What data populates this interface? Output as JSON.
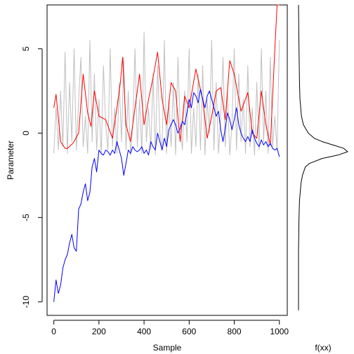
{
  "chart_data": [
    {
      "type": "line",
      "title": "",
      "xlabel": "Sample",
      "ylabel": "Parameter",
      "xlim": [
        -30,
        1035
      ],
      "ylim": [
        -10.8,
        7.6
      ],
      "xticks": [
        "0",
        "200",
        "400",
        "600",
        "800",
        "1000"
      ],
      "yticks": [
        "-10",
        "-5",
        "0",
        "5"
      ],
      "grid": false,
      "legend": "none",
      "series": [
        {
          "color": "#c0c0c0",
          "x": [
            0,
            10,
            20,
            30,
            40,
            50,
            60,
            70,
            80,
            90,
            100,
            110,
            120,
            130,
            140,
            150,
            160,
            170,
            180,
            190,
            200,
            210,
            220,
            230,
            240,
            250,
            260,
            270,
            280,
            290,
            300,
            310,
            320,
            330,
            340,
            350,
            360,
            370,
            380,
            390,
            400,
            410,
            420,
            430,
            440,
            450,
            460,
            470,
            480,
            490,
            500,
            510,
            520,
            530,
            540,
            550,
            560,
            570,
            580,
            590,
            600,
            610,
            620,
            630,
            640,
            650,
            660,
            670,
            680,
            690,
            700,
            710,
            720,
            730,
            740,
            750,
            760,
            770,
            780,
            790,
            800,
            810,
            820,
            830,
            840,
            850,
            860,
            870,
            880,
            890,
            900,
            910,
            920,
            930,
            940,
            950,
            960,
            970,
            980,
            990,
            1000
          ],
          "values": [
            -1.2,
            1.5,
            -1.0,
            2.5,
            -0.8,
            4.8,
            -1.2,
            3.0,
            -0.5,
            5.0,
            -1.0,
            2.0,
            4.5,
            -0.8,
            1.0,
            -1.2,
            5.5,
            -0.5,
            3.5,
            -1.0,
            2.0,
            -1.3,
            4.0,
            0.5,
            -1.0,
            5.0,
            -0.8,
            1.5,
            -1.2,
            3.0,
            -0.5,
            4.5,
            -1.0,
            2.5,
            -1.3,
            0.5,
            5.0,
            -0.8,
            2.0,
            -1.2,
            6.0,
            -0.5,
            1.5,
            -1.0,
            3.5,
            -1.3,
            4.0,
            0.0,
            -1.0,
            5.5,
            -1.2,
            2.0,
            -0.8,
            3.0,
            -1.3,
            4.5,
            0.5,
            -1.0,
            2.5,
            -0.5,
            5.0,
            -1.2,
            1.5,
            -0.8,
            3.5,
            -1.0,
            4.0,
            -1.3,
            2.0,
            0.0,
            5.5,
            -1.0,
            3.0,
            -1.2,
            1.0,
            4.5,
            -0.8,
            2.5,
            -1.3,
            0.5,
            5.0,
            -1.0,
            3.5,
            -0.5,
            2.0,
            -1.2,
            4.0,
            -0.8,
            1.5,
            -1.3,
            3.0,
            -1.0,
            5.0,
            -0.5,
            2.5,
            -1.2,
            4.5,
            -0.8,
            1.0,
            -1.0,
            5.5
          ]
        },
        {
          "color": "#ff0000",
          "x": [
            0,
            10,
            30,
            50,
            60,
            85,
            110,
            130,
            150,
            165,
            180,
            200,
            230,
            260,
            280,
            295,
            305,
            320,
            340,
            360,
            380,
            400,
            420,
            440,
            460,
            480,
            500,
            520,
            540,
            560,
            580,
            600,
            630,
            660,
            680,
            700,
            720,
            740,
            760,
            780,
            800,
            830,
            860,
            880,
            900,
            920,
            940,
            960,
            980,
            990,
            1000
          ],
          "values": [
            1.5,
            2.3,
            -0.5,
            -0.9,
            -0.9,
            -0.6,
            0.0,
            3.5,
            1.2,
            0.4,
            2.5,
            1.0,
            0.8,
            -0.3,
            1.5,
            3.0,
            4.5,
            0.5,
            -0.5,
            1.5,
            3.5,
            0.5,
            2.0,
            3.3,
            4.8,
            2.0,
            0.5,
            3.0,
            2.5,
            -0.5,
            2.2,
            1.5,
            3.8,
            2.0,
            -0.3,
            1.0,
            2.5,
            2.7,
            0.8,
            4.3,
            3.5,
            1.3,
            2.4,
            0.0,
            -0.3,
            2.5,
            0.5,
            -0.7,
            5.0,
            7.6,
            7.6
          ]
        },
        {
          "color": "#0000ff",
          "x": [
            0,
            10,
            20,
            30,
            40,
            50,
            60,
            70,
            80,
            90,
            100,
            110,
            120,
            130,
            140,
            150,
            160,
            170,
            180,
            190,
            200,
            210,
            220,
            230,
            240,
            250,
            260,
            270,
            280,
            290,
            300,
            310,
            320,
            330,
            340,
            350,
            360,
            370,
            380,
            390,
            400,
            410,
            420,
            430,
            440,
            450,
            460,
            470,
            480,
            490,
            500,
            510,
            520,
            530,
            540,
            550,
            560,
            570,
            580,
            590,
            600,
            610,
            620,
            630,
            640,
            650,
            660,
            670,
            680,
            690,
            700,
            710,
            720,
            730,
            740,
            750,
            760,
            770,
            780,
            790,
            800,
            810,
            820,
            830,
            840,
            850,
            860,
            870,
            880,
            890,
            900,
            910,
            920,
            930,
            940,
            950,
            960,
            970,
            980,
            990,
            1000
          ],
          "values": [
            -10.0,
            -8.7,
            -9.5,
            -9.0,
            -8.0,
            -7.5,
            -7.2,
            -6.5,
            -6.0,
            -6.8,
            -7.0,
            -4.5,
            -4.2,
            -3.5,
            -3.0,
            -4.0,
            -3.5,
            -2.0,
            -1.5,
            -2.3,
            -1.0,
            -1.2,
            -1.3,
            -1.0,
            -1.1,
            -1.3,
            -1.0,
            -1.2,
            -0.5,
            -1.0,
            -1.5,
            -2.5,
            -1.8,
            -1.0,
            -1.2,
            -0.8,
            -1.0,
            -1.1,
            -1.0,
            -0.8,
            -1.2,
            -1.0,
            -1.3,
            -0.5,
            -0.8,
            -1.0,
            0.0,
            -0.5,
            -1.0,
            -0.3,
            -0.8,
            0.2,
            0.5,
            0.8,
            0.5,
            0.0,
            0.3,
            0.7,
            0.5,
            1.2,
            2.0,
            1.5,
            2.4,
            2.2,
            1.8,
            2.6,
            2.0,
            1.5,
            2.2,
            2.5,
            2.0,
            1.5,
            1.0,
            1.3,
            0.2,
            -0.5,
            0.3,
            1.2,
            0.8,
            0.2,
            0.8,
            1.5,
            0.5,
            0.0,
            -0.3,
            -0.5,
            -0.2,
            -0.5,
            0.2,
            -0.3,
            -0.6,
            -0.8,
            -0.4,
            -0.7,
            -0.5,
            -0.8,
            -0.6,
            -0.9,
            -1.0,
            -0.9,
            -1.4
          ]
        }
      ]
    },
    {
      "type": "line",
      "title": "",
      "xlabel": "f(xx)",
      "ylabel": "",
      "ylim": [
        -10.8,
        7.6
      ],
      "series": [
        {
          "color": "#000000",
          "y": [
            -10.5,
            -7,
            -5,
            -4,
            -3,
            -2.5,
            -2,
            -1.8,
            -1.5,
            -1.3,
            -1.1,
            -0.9,
            -0.7,
            -0.5,
            -0.3,
            0,
            0.5,
            1,
            2,
            3,
            5,
            7.6
          ],
          "values": [
            0.0,
            0.0,
            0.01,
            0.02,
            0.05,
            0.08,
            0.14,
            0.22,
            0.48,
            0.8,
            1.0,
            0.92,
            0.7,
            0.48,
            0.32,
            0.2,
            0.1,
            0.06,
            0.03,
            0.02,
            0.01,
            0.0
          ]
        }
      ]
    }
  ]
}
